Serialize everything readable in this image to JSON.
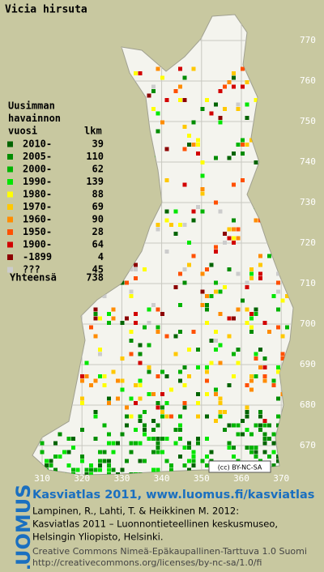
{
  "title": "Vicia hirsuta",
  "legend": {
    "heading": [
      "Uusimman",
      "havainnon",
      "vuosi"
    ],
    "count_heading": "lkm",
    "rows": [
      {
        "label": "2010-",
        "count": 39,
        "color": "#006400"
      },
      {
        "label": "2005-",
        "count": 110,
        "color": "#008c00"
      },
      {
        "label": "2000-",
        "count": 62,
        "color": "#00b400"
      },
      {
        "label": "1990-",
        "count": 139,
        "color": "#00e600"
      },
      {
        "label": "1980-",
        "count": 88,
        "color": "#ffff00"
      },
      {
        "label": "1970-",
        "count": 69,
        "color": "#ffc800"
      },
      {
        "label": "1960-",
        "count": 90,
        "color": "#ff8c00"
      },
      {
        "label": "1950-",
        "count": 28,
        "color": "#ff5000"
      },
      {
        "label": "1900-",
        "count": 64,
        "color": "#d20000"
      },
      {
        "label": "-1899",
        "count": 4,
        "color": "#8c0000"
      },
      {
        "label": "???",
        "count": 45,
        "color": "#cccccc"
      }
    ],
    "total": {
      "label": "Yhteensä",
      "count": 738
    }
  },
  "grid_labels": {
    "north": [
      770,
      760,
      750,
      740,
      730,
      720,
      710,
      700,
      690,
      680,
      670
    ],
    "east": [
      310,
      320,
      330,
      340,
      350,
      360,
      370
    ]
  },
  "license_badge": "(cc) BY-NC-SA",
  "footer": {
    "logo": "LUOMUS",
    "headline": "Kasviatlas 2011, www.luomus.fi/kasviatlas",
    "citation": [
      "Lampinen, R., Lahti, T. & Heikkinen M. 2012:",
      "Kasviatlas 2011 – Luonnontieteellinen keskusmuseo,",
      "Helsingin Yliopisto, Helsinki."
    ],
    "license": [
      "Creative Commons Nimeä-Epäkaupallinen-Tarttuva 1.0 Suomi",
      "http://creativecommons.org/licenses/by-nc-sa/1.0/fi"
    ]
  }
}
